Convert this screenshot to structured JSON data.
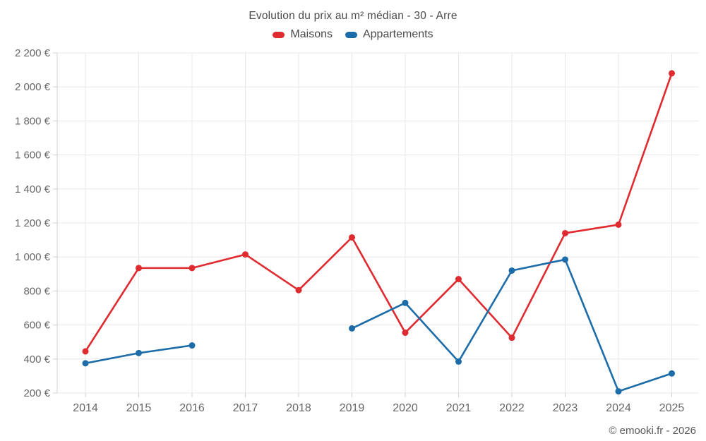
{
  "chart_data": {
    "type": "line",
    "title": "Evolution du prix au m² médian - 30 - Arre",
    "categories": [
      "2014",
      "2015",
      "2016",
      "2017",
      "2018",
      "2019",
      "2020",
      "2021",
      "2022",
      "2023",
      "2024",
      "2025"
    ],
    "series": [
      {
        "name": "Maisons",
        "color": "#df2b30",
        "values": [
          445,
          935,
          935,
          1015,
          805,
          1115,
          555,
          870,
          525,
          1140,
          1190,
          2080
        ]
      },
      {
        "name": "Appartements",
        "color": "#1b6ca9",
        "values": [
          375,
          435,
          480,
          null,
          null,
          580,
          730,
          385,
          920,
          985,
          210,
          315
        ]
      }
    ],
    "xlabel": "",
    "ylabel": "",
    "ylim": [
      200,
      2200
    ],
    "ytick_step": 200,
    "ytick_labels": [
      "200 €",
      "400 €",
      "600 €",
      "800 €",
      "1 000 €",
      "1 200 €",
      "1 400 €",
      "1 600 €",
      "1 800 €",
      "2 000 €",
      "2 200 €"
    ],
    "grid": true,
    "legend_position": "top"
  },
  "footer": {
    "copyright": "© emooki.fr - 2026"
  },
  "colors": {
    "grid": "#e8e8e8",
    "axis": "#d0d0d0",
    "tick_text": "#666666",
    "title_text": "#4a4a4a"
  }
}
